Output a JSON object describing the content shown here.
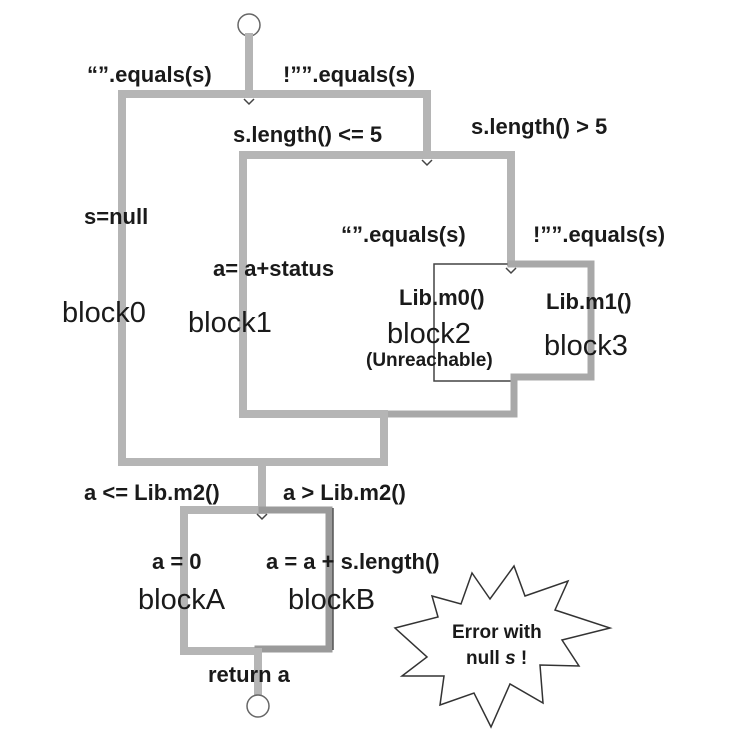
{
  "edges": {
    "empty_equals": "“”.equals(s)",
    "not_empty_equals": "!””.equals(s)",
    "len_le5": "s.length() <= 5",
    "len_gt5": "s.length() > 5",
    "s_null": "s=null",
    "a_status": "a= a+status",
    "inner_empty_equals": "“”.equals(s)",
    "inner_not_empty_equals": "!””.equals(s)",
    "le_m2": "a <= Lib.m2()",
    "gt_m2": "a > Lib.m2()",
    "a_zero": "a = 0",
    "a_plus_len": "a = a + s.length()",
    "return_a": "return  a"
  },
  "blocks": {
    "block0": "block0",
    "block1": "block1",
    "block2": "block2",
    "block2_note": "(Unreachable)",
    "block2_call": "Lib.m0()",
    "block3": "block3",
    "block3_call": "Lib.m1()",
    "blockA": "blockA",
    "blockB": "blockB"
  },
  "error_callout": {
    "line1": "Error with",
    "line2_prefix": "null ",
    "line2_var": "s",
    "line2_suffix": " !"
  },
  "colors": {
    "path_light": "#b5b5b5",
    "path_dark": "#9a9a9a",
    "node_fill": "#ffffff"
  }
}
